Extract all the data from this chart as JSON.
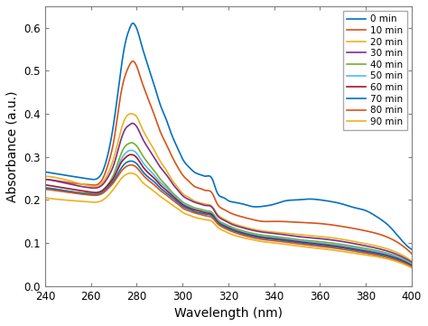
{
  "title": "",
  "xlabel": "Wavelength (nm)",
  "ylabel": "Absorbance (a.u.)",
  "xlim": [
    240,
    400
  ],
  "ylim": [
    0,
    0.65
  ],
  "yticks": [
    0.0,
    0.1,
    0.2,
    0.3,
    0.4,
    0.5,
    0.6
  ],
  "xticks": [
    240,
    260,
    280,
    300,
    320,
    340,
    360,
    380,
    400
  ],
  "figsize": [
    4.74,
    3.61
  ],
  "dpi": 100,
  "series": [
    {
      "label": "0 min",
      "color": "#0072BD",
      "keypoints": {
        "x": [
          240,
          248,
          255,
          260,
          265,
          268,
          270,
          273,
          275,
          277,
          278,
          279,
          280,
          282,
          285,
          288,
          290,
          293,
          295,
          298,
          300,
          303,
          305,
          308,
          310,
          313,
          315,
          318,
          320,
          322,
          325,
          328,
          330,
          335,
          340,
          345,
          350,
          355,
          360,
          365,
          370,
          375,
          380,
          385,
          390,
          395,
          400
        ],
        "y": [
          0.265,
          0.258,
          0.252,
          0.248,
          0.265,
          0.32,
          0.38,
          0.5,
          0.565,
          0.6,
          0.61,
          0.608,
          0.598,
          0.562,
          0.51,
          0.46,
          0.425,
          0.385,
          0.355,
          0.318,
          0.295,
          0.275,
          0.265,
          0.258,
          0.255,
          0.248,
          0.218,
          0.205,
          0.198,
          0.195,
          0.192,
          0.188,
          0.185,
          0.185,
          0.19,
          0.198,
          0.2,
          0.202,
          0.2,
          0.196,
          0.19,
          0.182,
          0.175,
          0.16,
          0.14,
          0.11,
          0.085
        ]
      }
    },
    {
      "label": "10 min",
      "color": "#D95319",
      "keypoints": {
        "x": [
          240,
          248,
          255,
          260,
          265,
          268,
          270,
          273,
          275,
          277,
          278,
          279,
          280,
          282,
          285,
          288,
          290,
          293,
          295,
          298,
          300,
          303,
          305,
          308,
          310,
          313,
          315,
          318,
          320,
          325,
          330,
          335,
          340,
          350,
          360,
          370,
          380,
          390,
          400
        ],
        "y": [
          0.248,
          0.242,
          0.237,
          0.235,
          0.248,
          0.292,
          0.338,
          0.445,
          0.49,
          0.515,
          0.522,
          0.52,
          0.51,
          0.478,
          0.435,
          0.392,
          0.362,
          0.328,
          0.305,
          0.275,
          0.258,
          0.242,
          0.232,
          0.226,
          0.222,
          0.215,
          0.192,
          0.178,
          0.172,
          0.162,
          0.155,
          0.15,
          0.15,
          0.148,
          0.145,
          0.138,
          0.128,
          0.112,
          0.075
        ]
      }
    },
    {
      "label": "20 min",
      "color": "#EDB120",
      "keypoints": {
        "x": [
          240,
          248,
          255,
          260,
          265,
          268,
          270,
          273,
          275,
          277,
          278,
          279,
          280,
          282,
          285,
          288,
          290,
          293,
          295,
          298,
          300,
          303,
          305,
          308,
          310,
          313,
          315,
          318,
          320,
          325,
          330,
          335,
          340,
          350,
          360,
          370,
          380,
          390,
          400
        ],
        "y": [
          0.255,
          0.248,
          0.238,
          0.232,
          0.24,
          0.268,
          0.298,
          0.36,
          0.39,
          0.4,
          0.4,
          0.398,
          0.393,
          0.37,
          0.34,
          0.312,
          0.292,
          0.268,
          0.25,
          0.228,
          0.215,
          0.205,
          0.198,
          0.193,
          0.19,
          0.184,
          0.168,
          0.156,
          0.15,
          0.14,
          0.133,
          0.128,
          0.125,
          0.12,
          0.115,
          0.108,
          0.098,
          0.085,
          0.058
        ]
      }
    },
    {
      "label": "30 min",
      "color": "#7E2F8E",
      "keypoints": {
        "x": [
          240,
          248,
          255,
          260,
          265,
          268,
          270,
          273,
          275,
          277,
          278,
          279,
          280,
          282,
          285,
          288,
          290,
          293,
          295,
          298,
          300,
          303,
          305,
          308,
          310,
          313,
          315,
          318,
          320,
          325,
          330,
          335,
          340,
          350,
          360,
          370,
          380,
          390,
          400
        ],
        "y": [
          0.248,
          0.24,
          0.232,
          0.228,
          0.235,
          0.258,
          0.282,
          0.338,
          0.365,
          0.375,
          0.378,
          0.376,
          0.37,
          0.348,
          0.32,
          0.295,
          0.278,
          0.258,
          0.242,
          0.222,
          0.21,
          0.2,
          0.195,
          0.19,
          0.187,
          0.182,
          0.165,
          0.153,
          0.147,
          0.137,
          0.13,
          0.125,
          0.122,
          0.115,
          0.11,
          0.103,
          0.093,
          0.08,
          0.055
        ]
      }
    },
    {
      "label": "40 min",
      "color": "#77AC30",
      "keypoints": {
        "x": [
          240,
          248,
          255,
          260,
          265,
          268,
          270,
          273,
          275,
          277,
          278,
          279,
          280,
          282,
          285,
          288,
          290,
          293,
          295,
          298,
          300,
          303,
          305,
          308,
          310,
          313,
          315,
          318,
          320,
          325,
          330,
          335,
          340,
          350,
          360,
          370,
          380,
          390,
          400
        ],
        "y": [
          0.228,
          0.222,
          0.217,
          0.215,
          0.22,
          0.24,
          0.26,
          0.305,
          0.325,
          0.332,
          0.333,
          0.33,
          0.325,
          0.308,
          0.285,
          0.265,
          0.25,
          0.233,
          0.22,
          0.205,
          0.195,
          0.187,
          0.182,
          0.178,
          0.175,
          0.17,
          0.156,
          0.145,
          0.14,
          0.13,
          0.123,
          0.118,
          0.115,
          0.108,
          0.103,
          0.096,
          0.087,
          0.075,
          0.052
        ]
      }
    },
    {
      "label": "50 min",
      "color": "#4DBEEE",
      "keypoints": {
        "x": [
          240,
          248,
          255,
          260,
          265,
          268,
          270,
          273,
          275,
          277,
          278,
          279,
          280,
          282,
          285,
          288,
          290,
          293,
          295,
          298,
          300,
          303,
          305,
          308,
          310,
          313,
          315,
          318,
          320,
          325,
          330,
          335,
          340,
          350,
          360,
          370,
          380,
          390,
          400
        ],
        "y": [
          0.225,
          0.22,
          0.215,
          0.213,
          0.218,
          0.235,
          0.253,
          0.292,
          0.308,
          0.315,
          0.315,
          0.313,
          0.308,
          0.292,
          0.272,
          0.255,
          0.242,
          0.228,
          0.216,
          0.202,
          0.192,
          0.184,
          0.179,
          0.175,
          0.172,
          0.167,
          0.153,
          0.142,
          0.137,
          0.127,
          0.12,
          0.115,
          0.112,
          0.106,
          0.1,
          0.093,
          0.084,
          0.073,
          0.05
        ]
      }
    },
    {
      "label": "60 min",
      "color": "#A2142F",
      "keypoints": {
        "x": [
          240,
          248,
          255,
          260,
          265,
          268,
          270,
          273,
          275,
          277,
          278,
          279,
          280,
          282,
          285,
          288,
          290,
          293,
          295,
          298,
          300,
          303,
          305,
          308,
          310,
          313,
          315,
          318,
          320,
          325,
          330,
          335,
          340,
          350,
          360,
          370,
          380,
          390,
          400
        ],
        "y": [
          0.235,
          0.228,
          0.222,
          0.218,
          0.222,
          0.238,
          0.252,
          0.285,
          0.298,
          0.305,
          0.305,
          0.303,
          0.298,
          0.282,
          0.263,
          0.248,
          0.236,
          0.222,
          0.212,
          0.198,
          0.189,
          0.181,
          0.177,
          0.173,
          0.17,
          0.165,
          0.151,
          0.14,
          0.135,
          0.125,
          0.118,
          0.113,
          0.11,
          0.103,
          0.097,
          0.09,
          0.081,
          0.07,
          0.048
        ]
      }
    },
    {
      "label": "70 min",
      "color": "#0072BD",
      "keypoints": {
        "x": [
          240,
          248,
          255,
          260,
          265,
          268,
          270,
          273,
          275,
          277,
          278,
          279,
          280,
          282,
          285,
          288,
          290,
          293,
          295,
          298,
          300,
          303,
          305,
          308,
          310,
          313,
          315,
          318,
          320,
          325,
          330,
          335,
          340,
          350,
          360,
          370,
          380,
          390,
          400
        ],
        "y": [
          0.228,
          0.222,
          0.216,
          0.213,
          0.217,
          0.232,
          0.245,
          0.272,
          0.285,
          0.29,
          0.29,
          0.288,
          0.284,
          0.27,
          0.253,
          0.24,
          0.229,
          0.216,
          0.207,
          0.194,
          0.185,
          0.178,
          0.173,
          0.169,
          0.167,
          0.162,
          0.149,
          0.138,
          0.133,
          0.123,
          0.116,
          0.111,
          0.108,
          0.101,
          0.095,
          0.088,
          0.079,
          0.068,
          0.046
        ]
      }
    },
    {
      "label": "80 min",
      "color": "#D95319",
      "keypoints": {
        "x": [
          240,
          248,
          255,
          260,
          265,
          268,
          270,
          273,
          275,
          277,
          278,
          279,
          280,
          282,
          285,
          288,
          290,
          293,
          295,
          298,
          300,
          303,
          305,
          308,
          310,
          313,
          315,
          318,
          320,
          325,
          330,
          335,
          340,
          350,
          360,
          370,
          380,
          390,
          400
        ],
        "y": [
          0.225,
          0.219,
          0.214,
          0.211,
          0.215,
          0.229,
          0.241,
          0.265,
          0.276,
          0.281,
          0.281,
          0.279,
          0.275,
          0.262,
          0.246,
          0.233,
          0.223,
          0.211,
          0.202,
          0.19,
          0.181,
          0.174,
          0.17,
          0.166,
          0.163,
          0.158,
          0.146,
          0.135,
          0.13,
          0.12,
          0.113,
          0.108,
          0.105,
          0.098,
          0.092,
          0.085,
          0.076,
          0.065,
          0.044
        ]
      }
    },
    {
      "label": "90 min",
      "color": "#EDB120",
      "keypoints": {
        "x": [
          240,
          248,
          255,
          260,
          265,
          268,
          270,
          273,
          275,
          277,
          278,
          279,
          280,
          282,
          285,
          288,
          290,
          293,
          295,
          298,
          300,
          303,
          305,
          308,
          310,
          313,
          315,
          318,
          320,
          325,
          330,
          335,
          340,
          350,
          360,
          370,
          380,
          390,
          400
        ],
        "y": [
          0.205,
          0.2,
          0.197,
          0.195,
          0.199,
          0.213,
          0.226,
          0.248,
          0.258,
          0.262,
          0.262,
          0.26,
          0.257,
          0.244,
          0.23,
          0.218,
          0.209,
          0.198,
          0.19,
          0.179,
          0.171,
          0.164,
          0.16,
          0.156,
          0.154,
          0.149,
          0.138,
          0.128,
          0.123,
          0.114,
          0.108,
          0.103,
          0.1,
          0.093,
          0.087,
          0.08,
          0.072,
          0.062,
          0.042
        ]
      }
    }
  ]
}
